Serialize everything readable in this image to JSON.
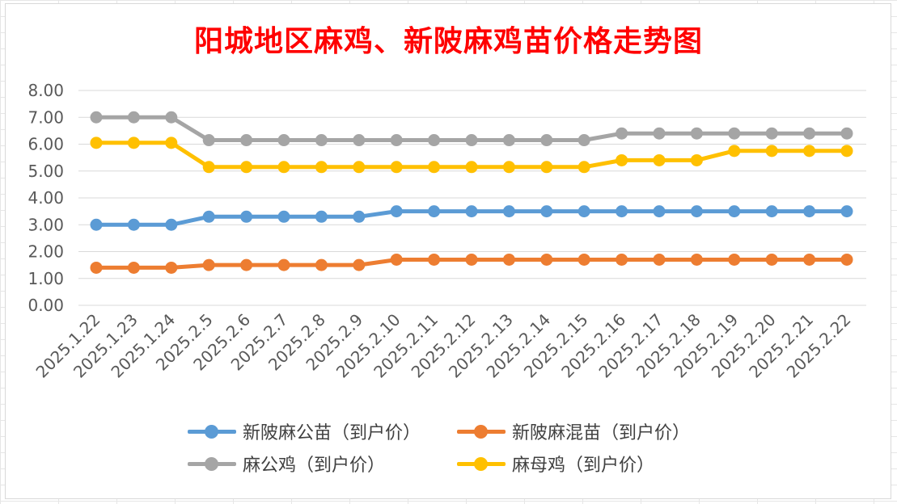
{
  "chart_data": {
    "type": "line",
    "title": "阳城地区麻鸡、新陂麻鸡苗价格走势图",
    "xlabel": "",
    "ylabel": "",
    "ylim": [
      0,
      8
    ],
    "y_ticks": [
      "0.00",
      "1.00",
      "2.00",
      "3.00",
      "4.00",
      "5.00",
      "6.00",
      "7.00",
      "8.00"
    ],
    "grid": true,
    "legend_position": "bottom",
    "categories": [
      "2025.1.22",
      "2025.1.23",
      "2025.1.24",
      "2025.2.5",
      "2025.2.6",
      "2025.2.7",
      "2025.2.8",
      "2025.2.9",
      "2025.2.10",
      "2025.2.11",
      "2025.2.12",
      "2025.2.13",
      "2025.2.14",
      "2025.2.15",
      "2025.2.16",
      "2025.2.17",
      "2025.2.18",
      "2025.2.19",
      "2025.2.20",
      "2025.2.21",
      "2025.2.22"
    ],
    "series": [
      {
        "name": "新陂麻公苗（到户价）",
        "color": "#5b9bd5",
        "values": [
          3.0,
          3.0,
          3.0,
          3.3,
          3.3,
          3.3,
          3.3,
          3.3,
          3.5,
          3.5,
          3.5,
          3.5,
          3.5,
          3.5,
          3.5,
          3.5,
          3.5,
          3.5,
          3.5,
          3.5,
          3.5
        ]
      },
      {
        "name": "新陂麻混苗（到户价）",
        "color": "#ed7d31",
        "values": [
          1.4,
          1.4,
          1.4,
          1.5,
          1.5,
          1.5,
          1.5,
          1.5,
          1.7,
          1.7,
          1.7,
          1.7,
          1.7,
          1.7,
          1.7,
          1.7,
          1.7,
          1.7,
          1.7,
          1.7,
          1.7
        ]
      },
      {
        "name": "麻公鸡（到户价）",
        "color": "#a5a5a5",
        "values": [
          7.0,
          7.0,
          7.0,
          6.15,
          6.15,
          6.15,
          6.15,
          6.15,
          6.15,
          6.15,
          6.15,
          6.15,
          6.15,
          6.15,
          6.4,
          6.4,
          6.4,
          6.4,
          6.4,
          6.4,
          6.4
        ]
      },
      {
        "name": "麻母鸡（到户价）",
        "color": "#ffc000",
        "values": [
          6.05,
          6.05,
          6.05,
          5.15,
          5.15,
          5.15,
          5.15,
          5.15,
          5.15,
          5.15,
          5.15,
          5.15,
          5.15,
          5.15,
          5.4,
          5.4,
          5.4,
          5.75,
          5.75,
          5.75,
          5.75
        ]
      }
    ]
  }
}
